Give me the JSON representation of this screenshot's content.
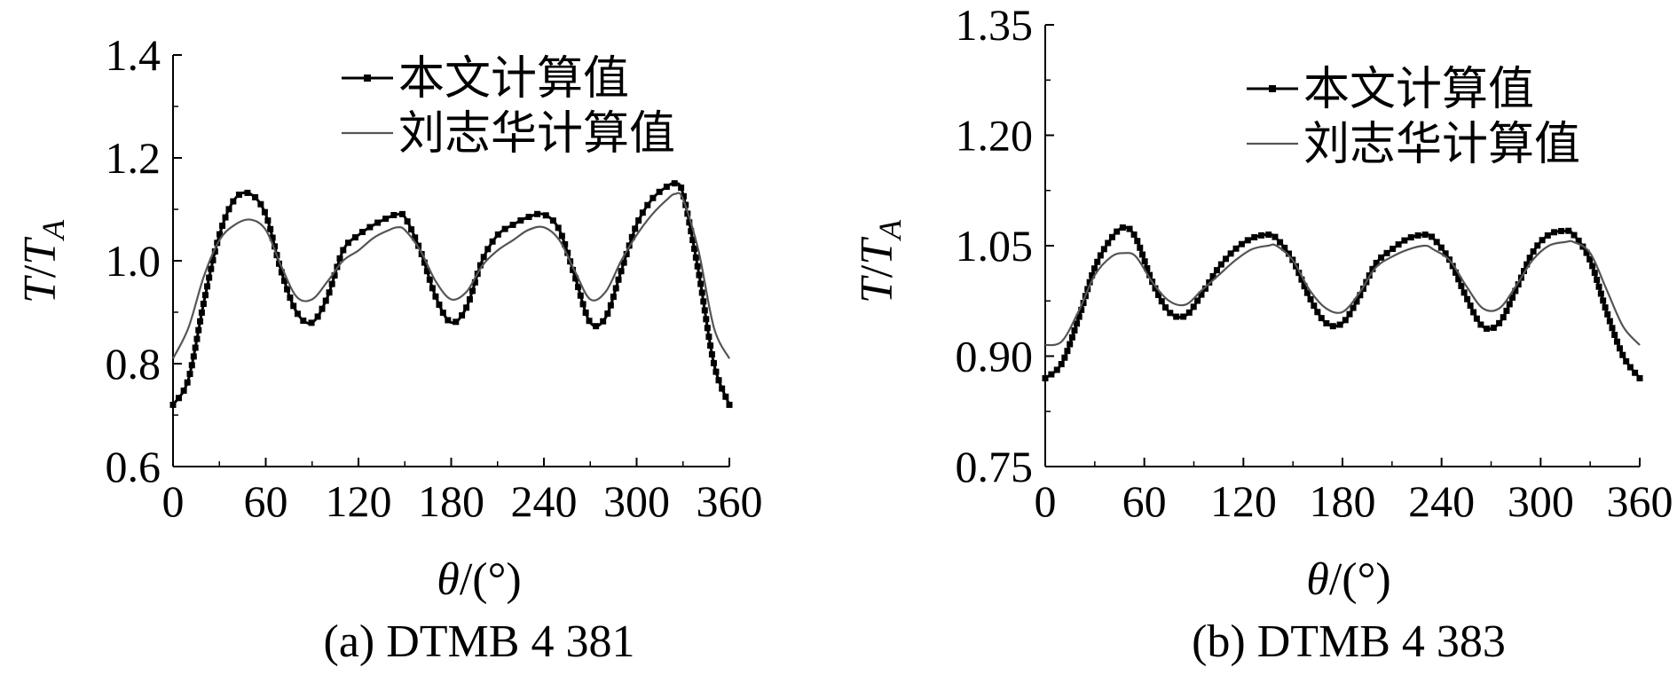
{
  "colors": {
    "series_primary": "#000000",
    "series_secondary": "#555555"
  },
  "chart_data": [
    {
      "type": "line",
      "caption": "(a) DTMB 4 381",
      "xlabel": "θ/(°)",
      "ylabel": "T/T_A",
      "xlim": [
        0,
        360
      ],
      "ylim": [
        0.6,
        1.4
      ],
      "xticks": [
        "0",
        "60",
        "120",
        "180",
        "240",
        "300",
        "360"
      ],
      "yticks": [
        "0.6",
        "0.8",
        "1.0",
        "1.2",
        "1.4"
      ],
      "grid": false,
      "legend_position": "top-right",
      "series": [
        {
          "name": "本文计算值",
          "marker": "square",
          "x": [
            0,
            10,
            20,
            30,
            40,
            50,
            60,
            70,
            80,
            90,
            100,
            110,
            120,
            130,
            140,
            145,
            150,
            160,
            170,
            180,
            190,
            200,
            210,
            220,
            230,
            240,
            250,
            260,
            270,
            280,
            290,
            300,
            310,
            320,
            325,
            330,
            340,
            350,
            360
          ],
          "y": [
            0.72,
            0.77,
            0.92,
            1.05,
            1.12,
            1.13,
            1.09,
            0.98,
            0.9,
            0.88,
            0.93,
            1.02,
            1.05,
            1.07,
            1.085,
            1.09,
            1.085,
            1.02,
            0.93,
            0.88,
            0.91,
            1.0,
            1.05,
            1.07,
            1.085,
            1.09,
            1.06,
            0.97,
            0.88,
            0.89,
            0.98,
            1.07,
            1.12,
            1.145,
            1.15,
            1.13,
            0.98,
            0.8,
            0.72
          ]
        },
        {
          "name": "刘志华计算值",
          "marker": "none",
          "x": [
            0,
            10,
            20,
            30,
            40,
            50,
            60,
            70,
            80,
            90,
            100,
            110,
            120,
            130,
            140,
            145,
            150,
            160,
            170,
            180,
            190,
            200,
            210,
            220,
            230,
            240,
            250,
            260,
            270,
            280,
            290,
            300,
            310,
            320,
            325,
            330,
            340,
            350,
            360
          ],
          "y": [
            0.81,
            0.87,
            0.97,
            1.04,
            1.07,
            1.08,
            1.06,
            0.99,
            0.93,
            0.925,
            0.96,
            1.0,
            1.02,
            1.045,
            1.06,
            1.065,
            1.06,
            1.02,
            0.96,
            0.925,
            0.94,
            0.99,
            1.02,
            1.04,
            1.06,
            1.065,
            1.04,
            0.98,
            0.925,
            0.94,
            1.0,
            1.05,
            1.09,
            1.12,
            1.13,
            1.12,
            1.02,
            0.87,
            0.81
          ]
        }
      ]
    },
    {
      "type": "line",
      "caption": "(b) DTMB 4 383",
      "xlabel": "θ/(°)",
      "ylabel": "T/T_A",
      "xlim": [
        0,
        360
      ],
      "ylim": [
        0.75,
        1.35
      ],
      "xticks": [
        "0",
        "60",
        "120",
        "180",
        "240",
        "300",
        "360"
      ],
      "yticks": [
        "0.75",
        "0.90",
        "1.05",
        "1.20",
        "1.35"
      ],
      "grid": false,
      "legend_position": "top-right",
      "series": [
        {
          "name": "本文计算值",
          "marker": "square",
          "x": [
            0,
            10,
            20,
            30,
            40,
            48,
            55,
            65,
            75,
            85,
            95,
            105,
            115,
            125,
            135,
            140,
            150,
            160,
            170,
            180,
            190,
            200,
            210,
            220,
            230,
            235,
            245,
            255,
            265,
            275,
            285,
            295,
            305,
            315,
            320,
            330,
            340,
            350,
            360
          ],
          "y": [
            0.87,
            0.89,
            0.95,
            1.02,
            1.06,
            1.075,
            1.06,
            1.0,
            0.96,
            0.955,
            0.985,
            1.02,
            1.045,
            1.06,
            1.065,
            1.06,
            1.03,
            0.98,
            0.945,
            0.945,
            0.98,
            1.025,
            1.045,
            1.06,
            1.065,
            1.06,
            1.03,
            0.98,
            0.94,
            0.945,
            0.99,
            1.04,
            1.065,
            1.07,
            1.065,
            1.03,
            0.96,
            0.9,
            0.87
          ]
        },
        {
          "name": "刘志华计算值",
          "marker": "none",
          "x": [
            0,
            10,
            20,
            30,
            40,
            48,
            55,
            65,
            75,
            85,
            95,
            105,
            115,
            125,
            135,
            140,
            150,
            160,
            170,
            180,
            190,
            200,
            210,
            220,
            230,
            235,
            245,
            255,
            265,
            275,
            285,
            295,
            305,
            315,
            320,
            330,
            340,
            350,
            360
          ],
          "y": [
            0.915,
            0.92,
            0.96,
            1.01,
            1.035,
            1.04,
            1.035,
            1.0,
            0.975,
            0.97,
            0.99,
            1.01,
            1.03,
            1.045,
            1.05,
            1.05,
            1.03,
            0.99,
            0.965,
            0.96,
            0.985,
            1.02,
            1.035,
            1.045,
            1.05,
            1.045,
            1.03,
            0.995,
            0.965,
            0.965,
            0.995,
            1.03,
            1.05,
            1.055,
            1.055,
            1.04,
            0.99,
            0.94,
            0.915
          ]
        }
      ]
    }
  ]
}
